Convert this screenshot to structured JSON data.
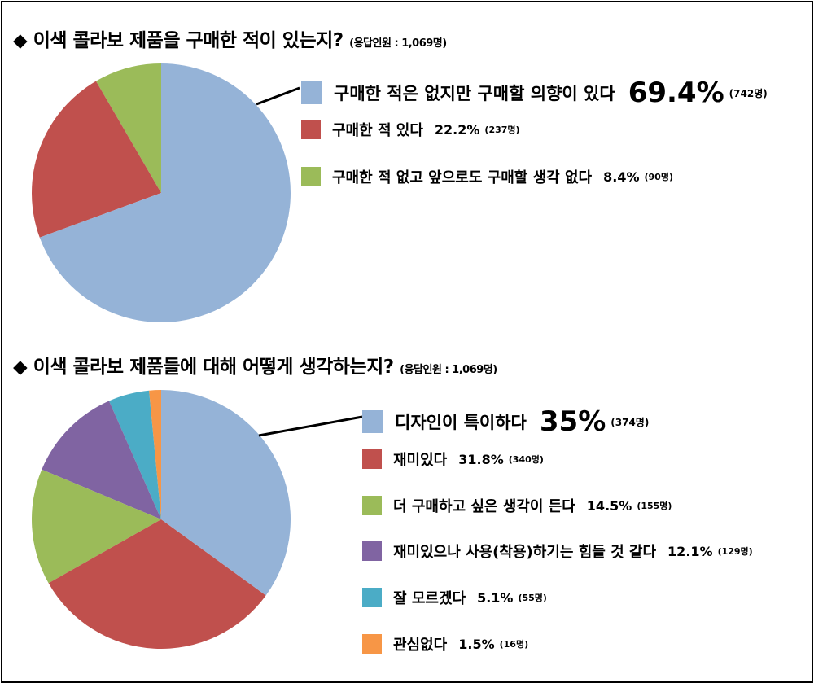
{
  "chart_data": [
    {
      "type": "pie",
      "title": "◆ 이색 콜라보 제품을 구매한 적이 있는지?",
      "subtitle": "(응답인원 : 1,069명)",
      "categories": [
        "구매한 적은 없지만 구매할 의향이 있다",
        "구매한 적 있다",
        "구매한 적 없고 앞으로도 구매할 생각 없다"
      ],
      "values": [
        69.4,
        22.2,
        8.4
      ],
      "value_labels": [
        "69.4%",
        "22.2%",
        "8.4%"
      ],
      "counts": [
        "(742명)",
        "(237명)",
        "(90명)"
      ],
      "colors": [
        "#95b3d7",
        "#c0504d",
        "#9bbb59"
      ],
      "legend": "right"
    },
    {
      "type": "pie",
      "title": "◆ 이색 콜라보 제품들에 대해 어떻게 생각하는지?",
      "subtitle": "(응답인원 : 1,069명)",
      "categories": [
        "디자인이 특이하다",
        "재미있다",
        "더 구매하고 싶은 생각이 든다",
        "재미있으나 사용(착용)하기는 힘들 것 같다",
        "잘 모르겠다",
        "관심없다"
      ],
      "values": [
        35,
        31.8,
        14.5,
        12.1,
        5.1,
        1.5
      ],
      "value_labels": [
        "35%",
        "31.8%",
        "14.5%",
        "12.1%",
        "5.1%",
        "1.5%"
      ],
      "counts": [
        "(374명)",
        "(340명)",
        "(155명)",
        "(129명)",
        "(55명)",
        "(16명)"
      ],
      "colors": [
        "#95b3d7",
        "#c0504d",
        "#9bbb59",
        "#8064a2",
        "#4bacc6",
        "#f79646"
      ],
      "legend": "right"
    }
  ]
}
